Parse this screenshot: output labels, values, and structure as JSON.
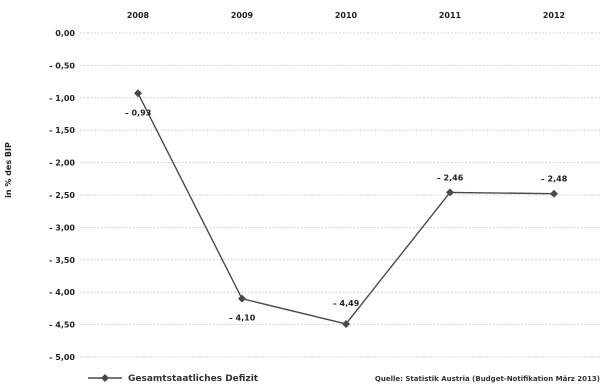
{
  "chart_data": {
    "type": "line",
    "x": [
      "2008",
      "2009",
      "2010",
      "2011",
      "2012"
    ],
    "ylabel": "in % des BIP",
    "ylim": [
      -5.0,
      0.0
    ],
    "y_ticks": [
      "0,00",
      "- 0,50",
      "- 1,00",
      "- 1,50",
      "- 2,00",
      "- 2,50",
      "- 3,00",
      "- 3,50",
      "- 4,00",
      "- 4,50",
      "- 5,00"
    ],
    "grid": true,
    "series": [
      {
        "name": "Gesamtstaatliches Defizit",
        "values": [
          -0.93,
          -4.1,
          -4.49,
          -2.46,
          -2.48
        ],
        "labels": [
          "– 0,93",
          "– 4,10",
          "– 4,49",
          "– 2,46",
          "– 2,48"
        ],
        "color": "#4a4a4a"
      }
    ],
    "legend_position": "bottom-left",
    "source": "Quelle: Statistik Austria (Budget-Notifikation März 2013)"
  }
}
